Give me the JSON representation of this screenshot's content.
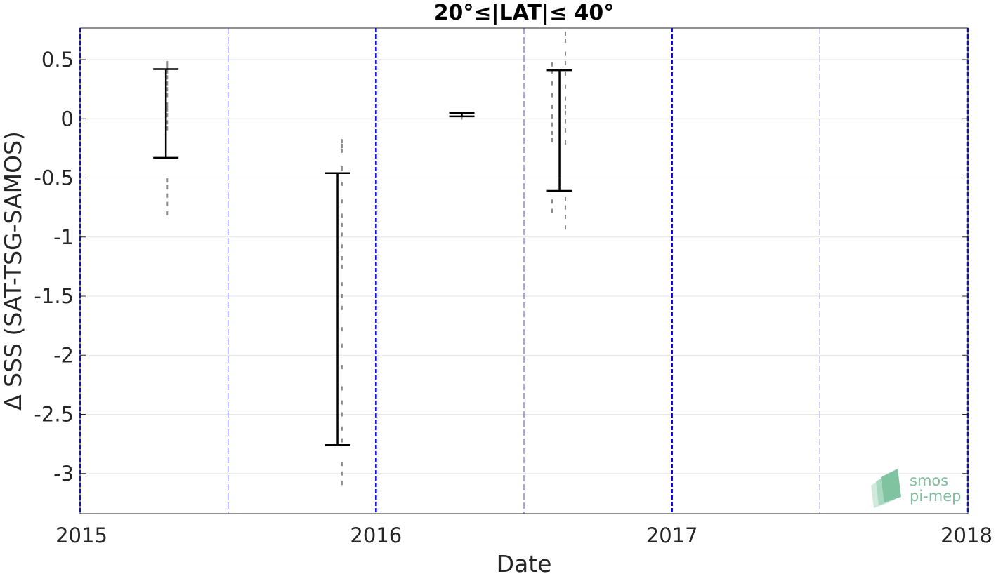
{
  "chart_data": {
    "type": "errorbar",
    "title": "20°≤|LAT|≤ 40°",
    "xlabel": "Date",
    "ylabel": "Δ SSS (SAT-TSG-SAMOS)",
    "xlim": [
      2015.0,
      2018.0
    ],
    "ylim": [
      -3.35,
      0.75
    ],
    "x_ticks": [
      2015,
      2016,
      2017,
      2018
    ],
    "x_tick_labels": [
      "2015",
      "2016",
      "2017",
      "2018"
    ],
    "y_ticks": [
      0.5,
      0,
      -0.5,
      -1,
      -1.5,
      -2,
      -2.5,
      -3
    ],
    "y_tick_labels": [
      "0.5",
      "0",
      "-0.5",
      "-1",
      "-1.5",
      "-2",
      "-2.5",
      "-3"
    ],
    "grid": true,
    "vertical_lines": {
      "years": [
        2015,
        2016,
        2017,
        2018
      ],
      "half_years": [
        2015.5,
        2016.5,
        2017.5
      ],
      "color": "#0000ee"
    },
    "errorbar_color": "#000000",
    "scatter_color": "#8a8a8a",
    "errorbars": [
      {
        "x": 2015.29,
        "low": -0.33,
        "high": 0.42
      },
      {
        "x": 2015.87,
        "low": -2.76,
        "high": -0.46
      },
      {
        "x": 2016.29,
        "low": 0.02,
        "high": 0.05
      },
      {
        "x": 2016.62,
        "low": -0.61,
        "high": 0.41
      }
    ],
    "scatter_columns": [
      {
        "x": 2015.295,
        "values": [
          0.47,
          0.44,
          0.4,
          0.35,
          0.3,
          0.25,
          0.2,
          0.12,
          0.08,
          0.03,
          -0.03,
          -0.08,
          -0.52,
          -0.58,
          -0.65,
          -0.72,
          -0.8
        ]
      },
      {
        "x": 2015.885,
        "values": [
          -0.19,
          -0.23,
          -0.27,
          -0.42,
          -0.55,
          -0.7,
          -0.82,
          -0.9,
          -0.98,
          -1.08,
          -1.18,
          -1.25,
          -1.4,
          -1.5,
          -1.6,
          -1.78,
          -1.92,
          -2.1,
          -2.28,
          -2.4,
          -2.5,
          -2.62,
          -2.72,
          -2.92,
          -3.0,
          -3.08
        ]
      },
      {
        "x": 2016.29,
        "values": [
          0.04,
          0.01
        ]
      },
      {
        "x": 2016.595,
        "values": [
          0.46,
          0.4,
          0.3,
          0.2,
          0.1,
          0.02,
          -0.05,
          -0.12,
          -0.18,
          -0.7,
          -0.78
        ]
      },
      {
        "x": 2016.64,
        "values": [
          0.72,
          0.66,
          0.55,
          0.47,
          0.38,
          0.27,
          0.17,
          0.1,
          0.05,
          -0.02,
          -0.1,
          -0.2,
          -0.68,
          -0.75,
          -0.83,
          -0.92
        ]
      }
    ],
    "watermark": {
      "line1": "smos",
      "line2": "pi-mep"
    }
  }
}
